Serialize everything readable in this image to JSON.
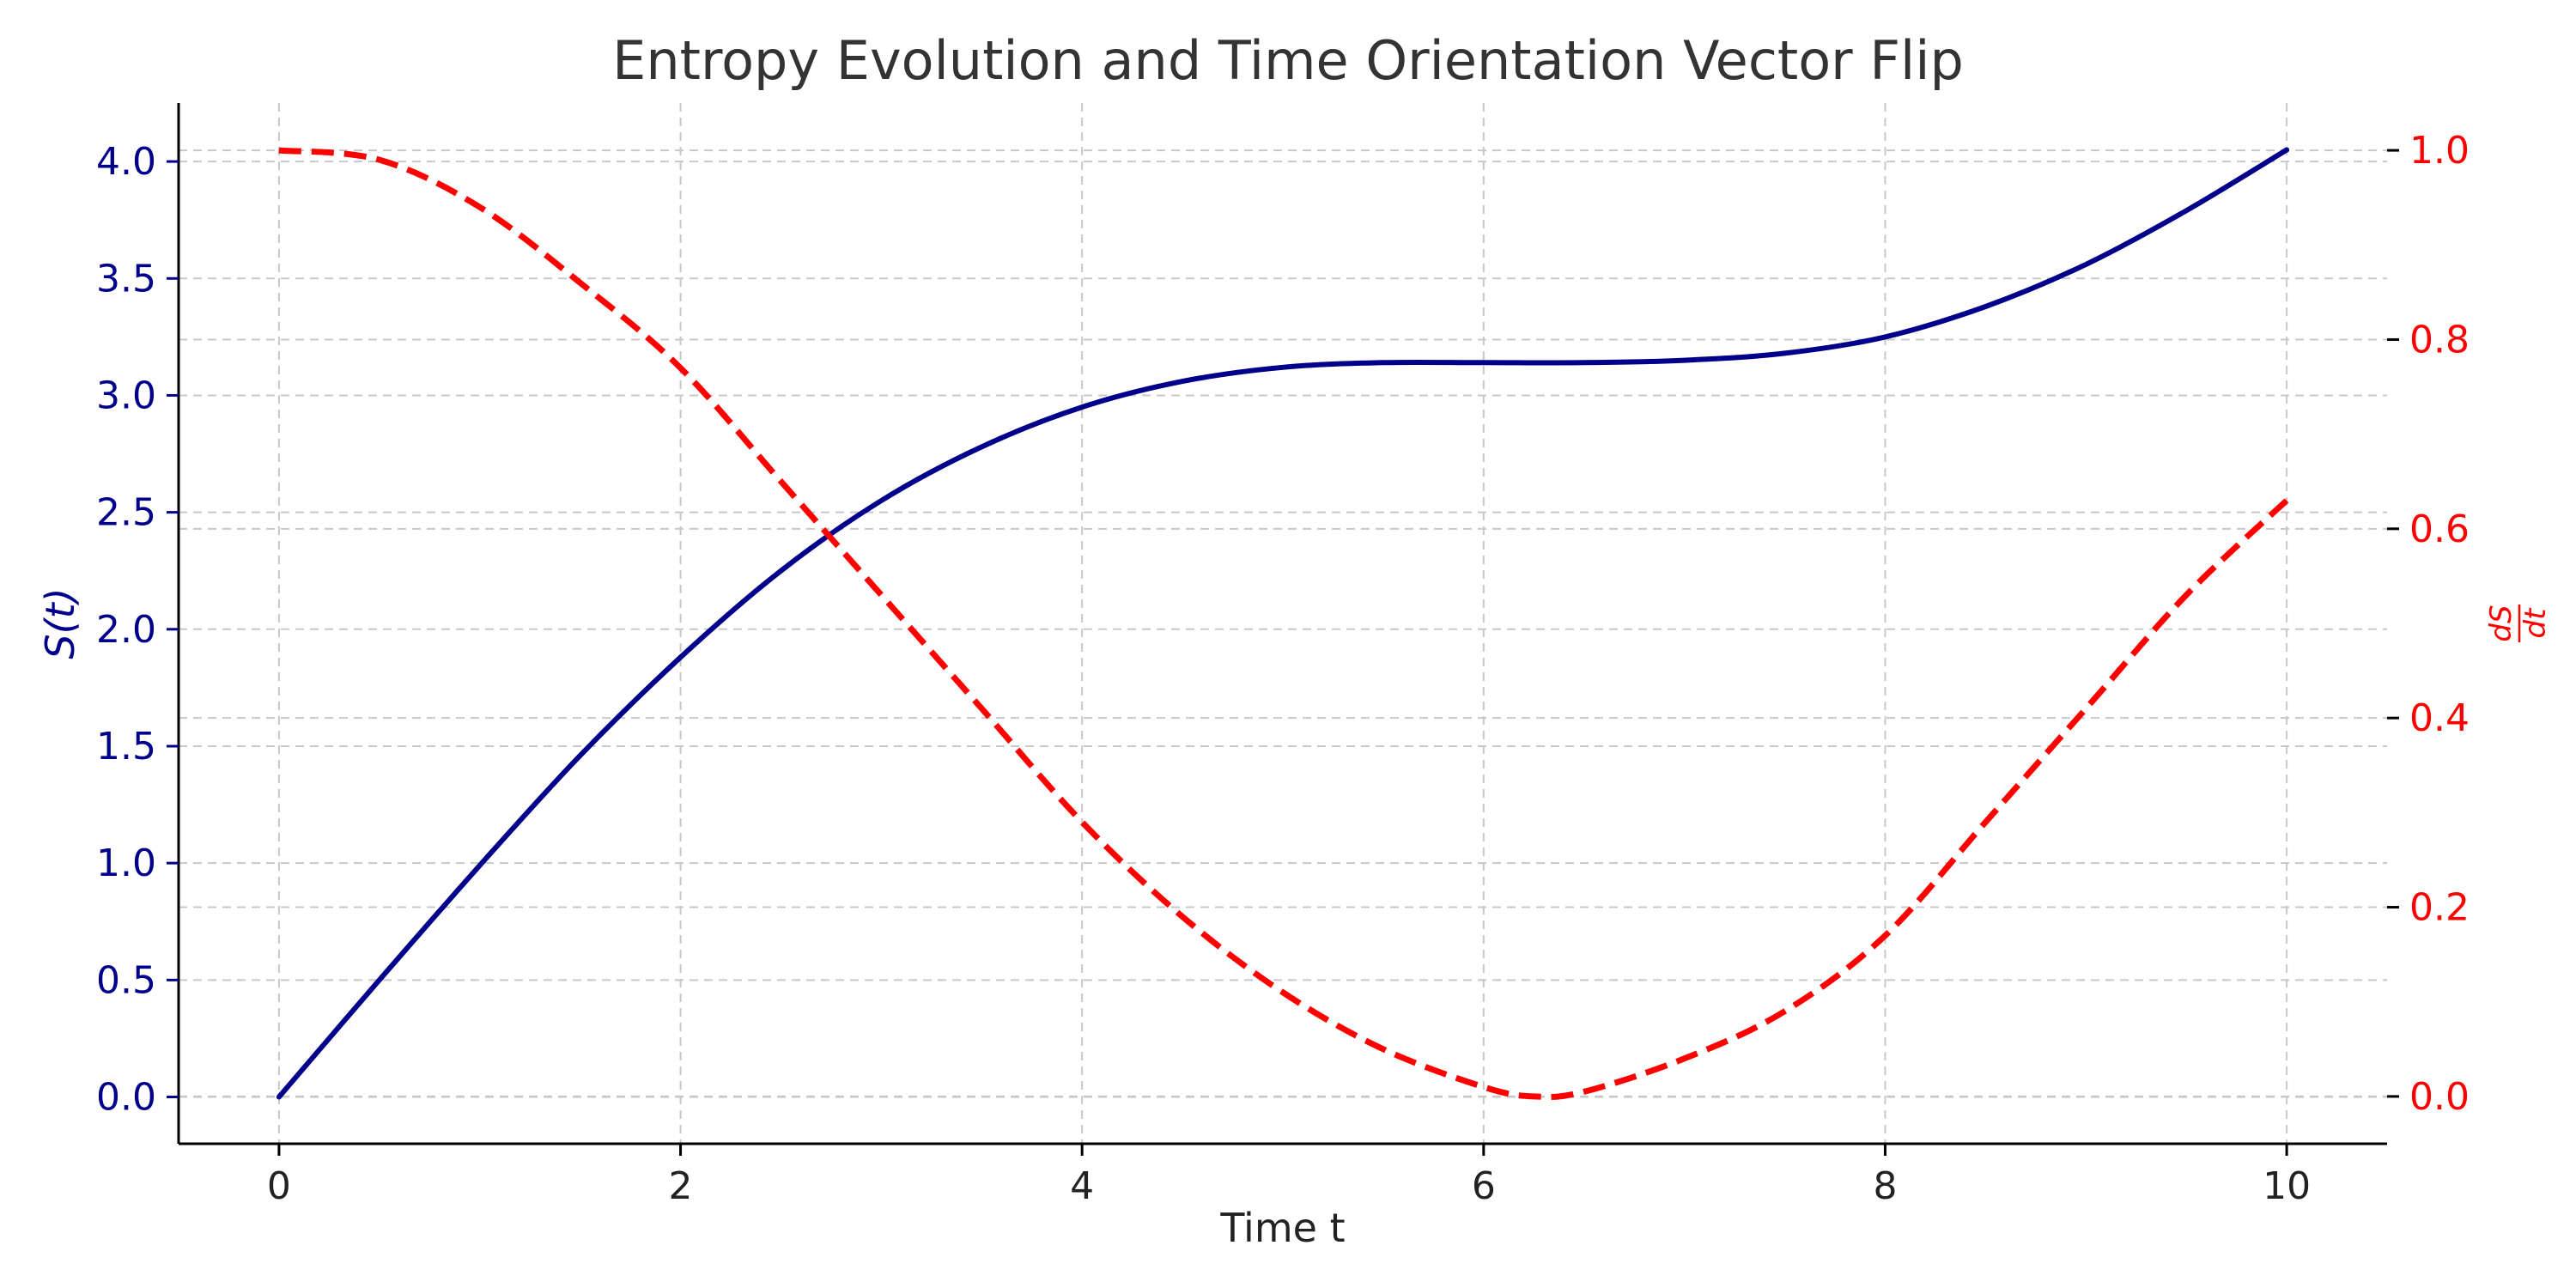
{
  "colors": {
    "left_series": "#00008b",
    "right_series": "#ff0000",
    "grid": "#c8c8c8",
    "title": "#333333",
    "axis": "#000000"
  },
  "chart_data": {
    "type": "line",
    "title": "Entropy Evolution and Time Orientation Vector Flip",
    "xlabel": "Time t",
    "ylabel_left": "S(t)",
    "ylabel_right_num": "dS",
    "ylabel_right_den": "dt",
    "xlim": [
      -0.5,
      10.5
    ],
    "ylim_left": [
      -0.2,
      4.25
    ],
    "ylim_right": [
      -0.05,
      1.05
    ],
    "x_ticks": [
      0,
      2,
      4,
      6,
      8,
      10
    ],
    "x_tick_labels": [
      "0",
      "2",
      "4",
      "6",
      "8",
      "10"
    ],
    "y_left_ticks": [
      0.0,
      0.5,
      1.0,
      1.5,
      2.0,
      2.5,
      3.0,
      3.5,
      4.0
    ],
    "y_left_tick_labels": [
      "0.0",
      "0.5",
      "1.0",
      "1.5",
      "2.0",
      "2.5",
      "3.0",
      "3.5",
      "4.0"
    ],
    "y_right_ticks": [
      0.0,
      0.2,
      0.4,
      0.6,
      0.8,
      1.0
    ],
    "y_right_tick_labels": [
      "0.0",
      "0.2",
      "0.4",
      "0.6",
      "0.8",
      "1.0"
    ],
    "grid": true,
    "series": [
      {
        "axis": "left",
        "style": "solid",
        "x": [
          0,
          0.5,
          1,
          1.5,
          2,
          2.5,
          3,
          3.5,
          4,
          4.5,
          5,
          5.5,
          6,
          6.5,
          7,
          7.5,
          8,
          8.5,
          9,
          9.5,
          10
        ],
        "values": [
          0.0,
          0.5,
          0.99,
          1.46,
          1.88,
          2.25,
          2.55,
          2.78,
          2.95,
          3.06,
          3.12,
          3.14,
          3.14,
          3.14,
          3.15,
          3.18,
          3.25,
          3.38,
          3.56,
          3.79,
          4.05
        ]
      },
      {
        "axis": "right",
        "style": "dashed",
        "x": [
          0,
          0.5,
          1,
          1.5,
          2,
          2.5,
          3,
          3.5,
          4,
          4.5,
          5,
          5.5,
          6,
          6.25,
          6.5,
          7,
          7.5,
          8,
          8.5,
          9,
          9.5,
          10
        ],
        "values": [
          1.0,
          0.99,
          0.94,
          0.86,
          0.77,
          0.65,
          0.53,
          0.41,
          0.29,
          0.19,
          0.11,
          0.05,
          0.01,
          0.0,
          0.005,
          0.04,
          0.09,
          0.17,
          0.29,
          0.41,
          0.53,
          0.63
        ]
      }
    ]
  }
}
